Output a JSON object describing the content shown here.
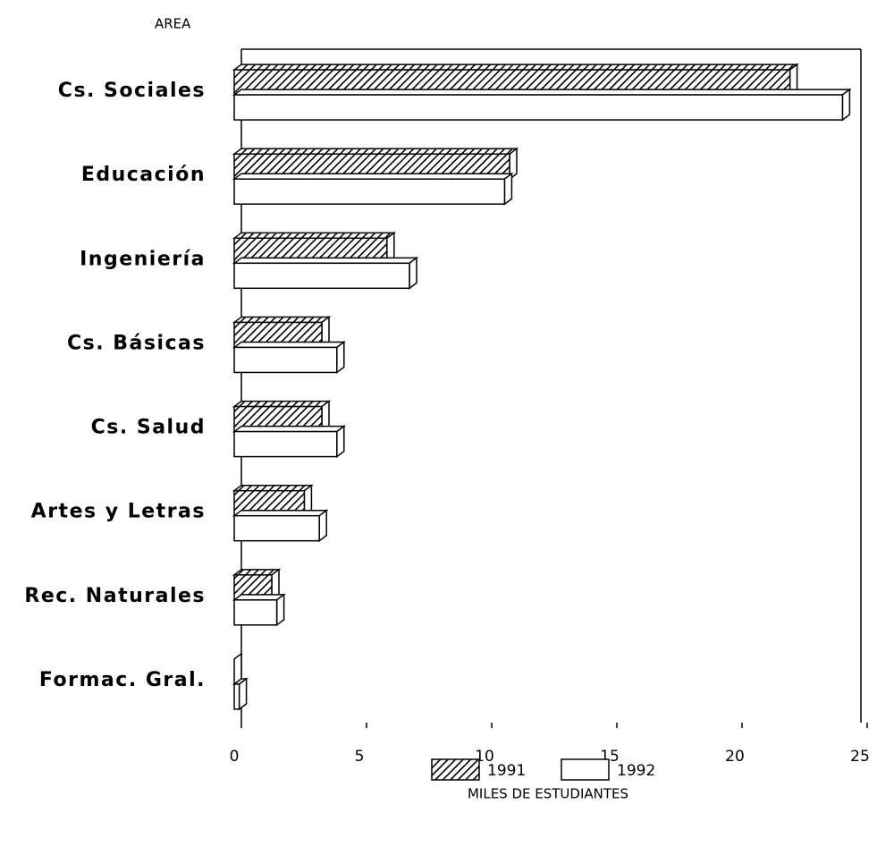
{
  "chart_data": {
    "type": "bar",
    "orientation": "horizontal",
    "y_label": "AREA",
    "x_label": "MILES DE ESTUDIANTES",
    "categories": [
      "Cs. Sociales",
      "Educación",
      "Ingeniería",
      "Cs. Básicas",
      "Cs. Salud",
      "Artes y Letras",
      "Rec. Naturales",
      "Formac. Gral."
    ],
    "series": [
      {
        "name": "1991",
        "color": "#000000",
        "hatch": true,
        "values": [
          22.2,
          11.0,
          6.1,
          3.5,
          3.5,
          2.8,
          1.5,
          0
        ]
      },
      {
        "name": "1992",
        "color": "#ffffff",
        "hatch": false,
        "values": [
          24.3,
          10.8,
          7.0,
          4.1,
          4.1,
          3.4,
          1.7,
          0.2
        ]
      }
    ],
    "xlim": [
      0,
      25
    ],
    "xticks": [
      0,
      5,
      10,
      15,
      20,
      25
    ],
    "legend": "bottom"
  }
}
